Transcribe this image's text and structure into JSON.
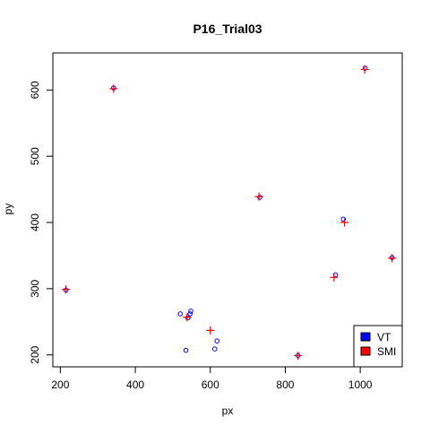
{
  "chart_data": {
    "type": "scatter",
    "title": "P16_Trial03",
    "xlabel": "px",
    "ylabel": "py",
    "xlim": [
      180,
      1112
    ],
    "ylim": [
      182,
      656
    ],
    "x_ticks": [
      200,
      400,
      600,
      800,
      1000
    ],
    "y_ticks": [
      200,
      300,
      400,
      500,
      600
    ],
    "grid": false,
    "legend_position": "bottom-right",
    "series": [
      {
        "name": "VT",
        "marker": "circle",
        "color": "#0000ff",
        "points": [
          {
            "x": 1013,
            "y": 633
          },
          {
            "x": 342,
            "y": 603
          },
          {
            "x": 732,
            "y": 438
          },
          {
            "x": 955,
            "y": 405
          },
          {
            "x": 1085,
            "y": 347
          },
          {
            "x": 934,
            "y": 321
          },
          {
            "x": 215,
            "y": 298
          },
          {
            "x": 548,
            "y": 266
          },
          {
            "x": 546,
            "y": 262
          },
          {
            "x": 520,
            "y": 262
          },
          {
            "x": 540,
            "y": 256
          },
          {
            "x": 618,
            "y": 221
          },
          {
            "x": 612,
            "y": 209
          },
          {
            "x": 535,
            "y": 207
          },
          {
            "x": 834,
            "y": 199
          }
        ]
      },
      {
        "name": "SMI",
        "marker": "plus",
        "color": "#ff0000",
        "points": [
          {
            "x": 1012,
            "y": 631
          },
          {
            "x": 342,
            "y": 602
          },
          {
            "x": 730,
            "y": 439
          },
          {
            "x": 958,
            "y": 400
          },
          {
            "x": 1085,
            "y": 346
          },
          {
            "x": 930,
            "y": 317
          },
          {
            "x": 215,
            "y": 299
          },
          {
            "x": 538,
            "y": 257
          },
          {
            "x": 600,
            "y": 237
          },
          {
            "x": 834,
            "y": 199
          }
        ]
      }
    ]
  }
}
